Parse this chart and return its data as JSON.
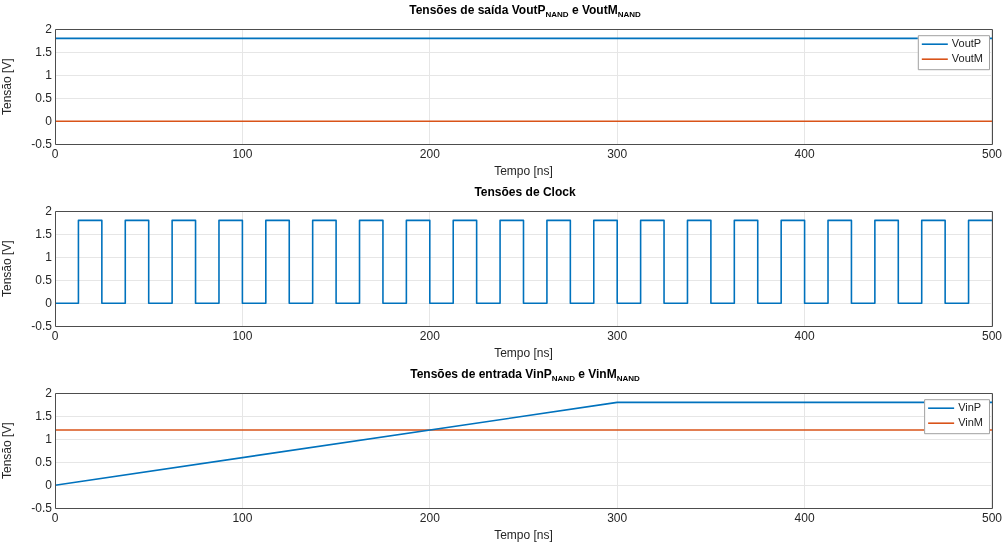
{
  "chart_data": [
    {
      "type": "line",
      "title": "Tensões de saída VoutP$_{NAND}$ e VoutM$_{NAND}$",
      "xlabel": "Tempo [ns]",
      "ylabel": "Tensão [V]",
      "series": [
        {
          "name": "VoutP",
          "color": "#0072bd",
          "x": [
            0,
            500
          ],
          "values": [
            1.8,
            1.8
          ]
        },
        {
          "name": "VoutM",
          "color": "#d95319",
          "x": [
            0,
            500
          ],
          "values": [
            0,
            0
          ]
        }
      ],
      "xlim": [
        0,
        500
      ],
      "xticks": [
        0,
        100,
        200,
        300,
        400,
        500
      ],
      "ylim": [
        -0.5,
        2
      ],
      "yticks": [
        -0.5,
        0,
        0.5,
        1,
        1.5,
        2
      ],
      "grid": true,
      "legend": "top right"
    },
    {
      "type": "step",
      "title": "Tensões de Clock",
      "xlabel": "Tempo [ns]",
      "ylabel": "Tensão [V]",
      "series": [
        {
          "color": "#0072bd",
          "x": [
            0,
            12.5,
            25,
            37.5,
            50,
            62.5,
            75,
            87.5,
            100,
            112.5,
            125,
            137.5,
            150,
            162.5,
            175,
            187.5,
            200,
            212.5,
            225,
            237.5,
            250,
            262.5,
            275,
            287.5,
            300,
            312.5,
            325,
            337.5,
            350,
            362.5,
            375,
            387.5,
            400,
            412.5,
            425,
            437.5,
            450,
            462.5,
            475,
            487.5,
            500
          ],
          "values": [
            0,
            1.8,
            0,
            1.8,
            0,
            1.8,
            0,
            1.8,
            0,
            1.8,
            0,
            1.8,
            0,
            1.8,
            0,
            1.8,
            0,
            1.8,
            0,
            1.8,
            0,
            1.8,
            0,
            1.8,
            0,
            1.8,
            0,
            1.8,
            0,
            1.8,
            0,
            1.8,
            0,
            1.8,
            0,
            1.8,
            0,
            1.8,
            0,
            1.8,
            1.8
          ]
        }
      ],
      "xlim": [
        0,
        500
      ],
      "xticks": [
        0,
        100,
        200,
        300,
        400,
        500
      ],
      "ylim": [
        -0.5,
        2
      ],
      "yticks": [
        -0.5,
        0,
        0.5,
        1,
        1.5,
        2
      ],
      "grid": true
    },
    {
      "type": "line",
      "title": "Tensões de entrada VinP$_{NAND}$ e VinM$_{NAND}$",
      "xlabel": "Tempo [ns]",
      "ylabel": "Tensão [V]",
      "series": [
        {
          "name": "VinP",
          "color": "#0072bd",
          "x": [
            0,
            300,
            500
          ],
          "values": [
            0,
            1.8,
            1.8
          ]
        },
        {
          "name": "VinM",
          "color": "#d95319",
          "x": [
            0,
            500
          ],
          "values": [
            1.2,
            1.2
          ]
        }
      ],
      "xlim": [
        0,
        500
      ],
      "xticks": [
        0,
        100,
        200,
        300,
        400,
        500
      ],
      "ylim": [
        -0.5,
        2
      ],
      "yticks": [
        -0.5,
        0,
        0.5,
        1,
        1.5,
        2
      ],
      "grid": true,
      "legend": "top right"
    }
  ]
}
